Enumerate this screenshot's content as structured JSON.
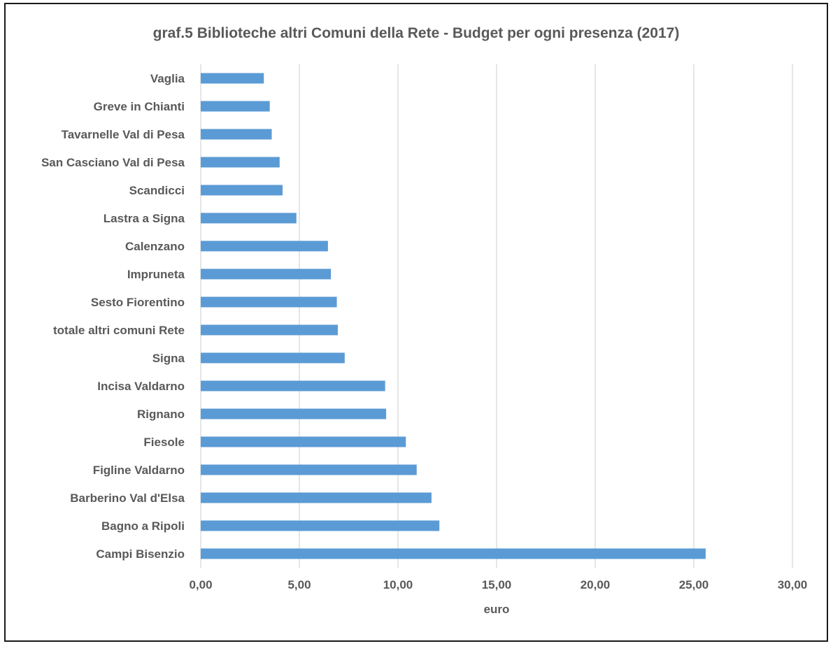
{
  "chart_data": {
    "type": "bar",
    "orientation": "horizontal",
    "title": "graf.5   Biblioteche altri Comuni della Rete -  Budget per ogni presenza (2017)",
    "xlabel": "euro",
    "ylabel": "",
    "xlim": [
      0,
      30
    ],
    "xticks": [
      "0,00",
      "5,00",
      "10,00",
      "15,00",
      "20,00",
      "25,00",
      "30,00"
    ],
    "grid": "vertical",
    "bar_color": "#5b9bd5",
    "categories": [
      "Vaglia",
      "Greve in Chianti",
      "Tavarnelle Val di Pesa",
      "San Casciano Val di Pesa",
      "Scandicci",
      "Lastra a Signa",
      "Calenzano",
      "Impruneta",
      "Sesto Fiorentino",
      "totale altri comuni Rete",
      "Signa",
      "Incisa Valdarno",
      "Rignano",
      "Fiesole",
      "Figline Valdarno",
      "Barberino Val d'Elsa",
      "Bagno a Ripoli",
      "Campi Bisenzio"
    ],
    "values": [
      3.2,
      3.5,
      3.6,
      4.0,
      4.15,
      4.85,
      6.45,
      6.6,
      6.9,
      6.95,
      7.3,
      9.35,
      9.4,
      10.4,
      10.95,
      11.7,
      12.1,
      25.6
    ]
  }
}
